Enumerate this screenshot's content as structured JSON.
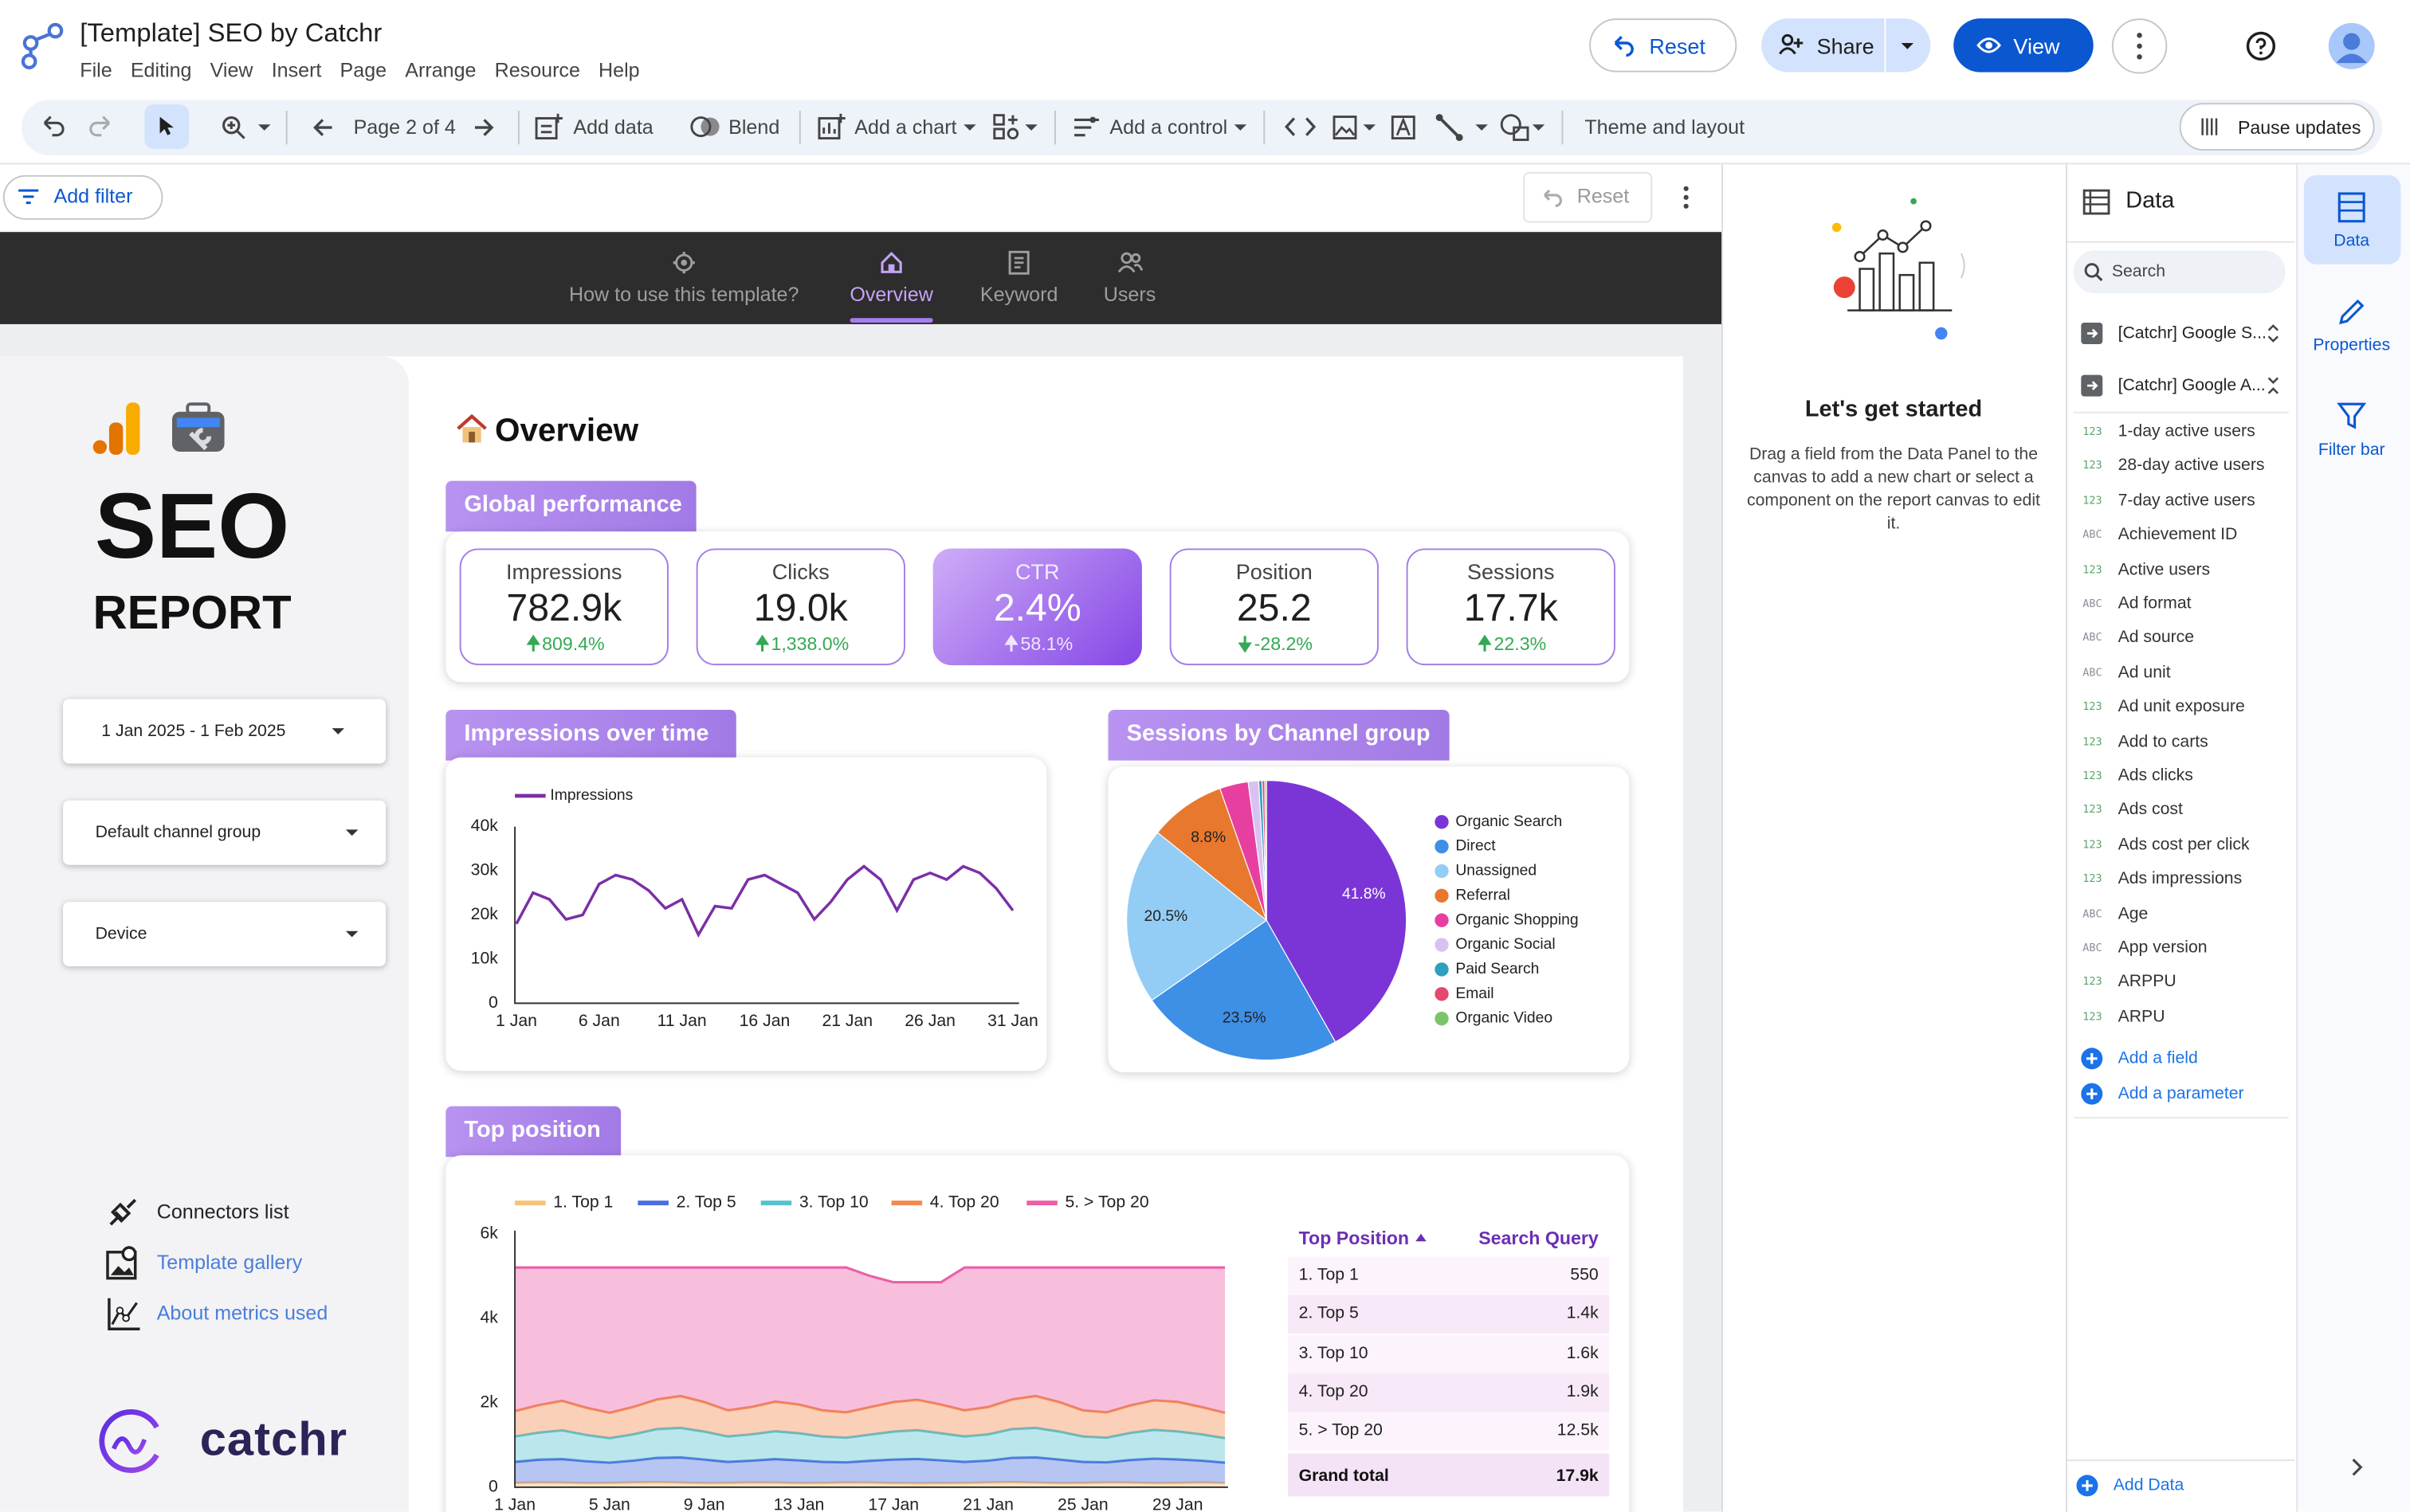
{
  "app": {
    "title": "[Template] SEO by Catchr",
    "menu": [
      "File",
      "Editing",
      "View",
      "Insert",
      "Page",
      "Arrange",
      "Resource",
      "Help"
    ],
    "buttons": {
      "reset": "Reset",
      "share": "Share",
      "view": "View"
    }
  },
  "toolbar": {
    "page": "Page 2 of 4",
    "add_data": "Add data",
    "blend": "Blend",
    "add_chart": "Add a chart",
    "add_control": "Add a control",
    "theme": "Theme and layout",
    "pause": "Pause updates"
  },
  "filter_bar": {
    "add_filter": "Add filter",
    "reset": "Reset"
  },
  "tabs": [
    "How to use this template?",
    "Overview",
    "Keyword",
    "Users"
  ],
  "active_tab": 1,
  "sidebar": {
    "title": "SEO",
    "subtitle": "REPORT",
    "controls": [
      "1 Jan 2025 - 1 Feb 2025",
      "Default channel group",
      "Device"
    ],
    "links": [
      "Connectors list",
      "Template gallery",
      "About metrics used"
    ],
    "brand": "catchr"
  },
  "overview": {
    "heading": "Overview",
    "global_performance": "Global performance",
    "scorecards": [
      {
        "label": "Impressions",
        "value": "782.9k",
        "change": "809.4%"
      },
      {
        "label": "Clicks",
        "value": "19.0k",
        "change": "1,338.0%"
      },
      {
        "label": "CTR",
        "value": "2.4%",
        "change": "58.1%"
      },
      {
        "label": "Position",
        "value": "25.2",
        "change": "-28.2%"
      },
      {
        "label": "Sessions",
        "value": "17.7k",
        "change": "22.3%"
      }
    ],
    "table": {
      "headers": [
        "Top Position",
        "Search Query"
      ],
      "rows": [
        [
          "1. Top 1",
          "550"
        ],
        [
          "2. Top 5",
          "1.4k"
        ],
        [
          "3. Top 10",
          "1.6k"
        ],
        [
          "4. Top 20",
          "1.9k"
        ],
        [
          "5. > Top 20",
          "12.5k"
        ]
      ],
      "total": [
        "Grand total",
        "17.9k"
      ]
    }
  },
  "chart_data": [
    {
      "type": "line",
      "title": "Impressions over time",
      "categories": [
        "1 Jan",
        null,
        null,
        null,
        null,
        "6 Jan",
        null,
        null,
        null,
        null,
        "11 Jan",
        null,
        null,
        null,
        null,
        "16 Jan",
        null,
        null,
        null,
        null,
        "21 Jan",
        null,
        null,
        null,
        null,
        "26 Jan",
        null,
        null,
        null,
        null,
        "31 Jan"
      ],
      "series": [
        {
          "name": "Impressions",
          "color": "#7b2fa6",
          "values": [
            18000,
            25000,
            23500,
            19000,
            20000,
            27000,
            29000,
            28000,
            25500,
            21500,
            23500,
            15500,
            22000,
            21500,
            28000,
            29000,
            27000,
            25000,
            19000,
            23000,
            28000,
            31000,
            28000,
            21000,
            28000,
            29500,
            28000,
            31000,
            29500,
            26000,
            21000
          ]
        }
      ],
      "ylim": [
        0,
        40000
      ],
      "yticks": [
        0,
        {
          "value": 10000,
          "label": "10k"
        },
        {
          "value": 20000,
          "label": "20k"
        },
        {
          "value": 30000,
          "label": "30k"
        },
        {
          "value": 40000,
          "label": "40k"
        }
      ],
      "grid": false
    },
    {
      "type": "pie",
      "title": "Sessions by Channel group",
      "categories": [
        "Organic Search",
        "Direct",
        "Unassigned",
        "Referral",
        "Organic Shopping",
        "Organic Social",
        "Paid Search",
        "Email",
        "Organic Video"
      ],
      "colors": [
        "#7b35d6",
        "#3e8fe6",
        "#93cdf5",
        "#e8782e",
        "#e73fa0",
        "#d9c2f2",
        "#2f9fbf",
        "#e24a6e",
        "#7cc46b"
      ],
      "values": [
        41.8,
        23.5,
        20.5,
        8.8,
        3.3,
        1.2,
        0.4,
        0.3,
        0.2
      ],
      "value_labels": [
        "41.8%",
        "23.5%",
        "20.5%",
        "8.8%",
        null,
        null,
        null,
        null,
        null
      ]
    },
    {
      "type": "area",
      "title": "Top position",
      "stacked": true,
      "categories": [
        "1 Jan",
        null,
        null,
        null,
        "5 Jan",
        null,
        null,
        null,
        "9 Jan",
        null,
        null,
        null,
        "13 Jan",
        null,
        null,
        null,
        "17 Jan",
        null,
        null,
        null,
        "21 Jan",
        null,
        null,
        null,
        "25 Jan",
        null,
        null,
        null,
        "29 Jan",
        null,
        null
      ],
      "series": [
        {
          "name": "1. Top 1",
          "color": "#f8c27a",
          "values": [
            100,
            110,
            105,
            95,
            100,
            110,
            115,
            105,
            95,
            100,
            110,
            105,
            95,
            100,
            110,
            105,
            95,
            90,
            95,
            100,
            110,
            115,
            105,
            95,
            100,
            110,
            105,
            95,
            100,
            110,
            100
          ]
        },
        {
          "name": "2. Top 5",
          "color": "#4a6ee0",
          "values": [
            500,
            540,
            560,
            520,
            480,
            520,
            580,
            600,
            560,
            500,
            520,
            560,
            540,
            500,
            480,
            520,
            560,
            580,
            540,
            500,
            520,
            580,
            600,
            560,
            500,
            480,
            540,
            580,
            560,
            520,
            480
          ]
        },
        {
          "name": "3. Top 10",
          "color": "#55c2cf",
          "values": [
            600,
            640,
            680,
            620,
            580,
            620,
            680,
            700,
            660,
            600,
            620,
            660,
            640,
            600,
            580,
            620,
            660,
            680,
            640,
            600,
            620,
            680,
            700,
            660,
            600,
            580,
            640,
            680,
            660,
            620,
            580
          ]
        },
        {
          "name": "4. Top 20",
          "color": "#f28a4f",
          "values": [
            600,
            650,
            700,
            650,
            600,
            650,
            700,
            750,
            700,
            620,
            650,
            700,
            680,
            620,
            600,
            650,
            700,
            720,
            680,
            620,
            650,
            700,
            750,
            700,
            620,
            600,
            650,
            700,
            700,
            650,
            600
          ]
        },
        {
          "name": "5. > Top 20",
          "color": "#ec5fa8",
          "values": [
            3400,
            3260,
            3155,
            3315,
            3440,
            3300,
            3125,
            3045,
            3185,
            3380,
            3300,
            3175,
            3245,
            3380,
            3430,
            3105,
            2835,
            2780,
            2895,
            3380,
            3300,
            3125,
            3045,
            3185,
            3380,
            3430,
            3265,
            3145,
            3180,
            3300,
            3440
          ]
        }
      ],
      "ylim": [
        0,
        6000
      ],
      "yticks": [
        0,
        {
          "value": 2000,
          "label": "2k"
        },
        {
          "value": 4000,
          "label": "4k"
        },
        {
          "value": 6000,
          "label": "6k"
        }
      ]
    }
  ],
  "get_started": {
    "title": "Let's get started",
    "text": "Drag a field from the Data Panel to the canvas to add a new chart or select a component on the report canvas to edit it."
  },
  "data_panel": {
    "title": "Data",
    "search": "Search",
    "sources": [
      "[Catchr] Google S...",
      "[Catchr] Google A..."
    ],
    "fields": [
      {
        "type": "123",
        "name": "1-day active users"
      },
      {
        "type": "123",
        "name": "28-day active users"
      },
      {
        "type": "123",
        "name": "7-day active users"
      },
      {
        "type": "ABC",
        "name": "Achievement ID"
      },
      {
        "type": "123",
        "name": "Active users"
      },
      {
        "type": "ABC",
        "name": "Ad format"
      },
      {
        "type": "ABC",
        "name": "Ad source"
      },
      {
        "type": "ABC",
        "name": "Ad unit"
      },
      {
        "type": "123",
        "name": "Ad unit exposure"
      },
      {
        "type": "123",
        "name": "Add to carts"
      },
      {
        "type": "123",
        "name": "Ads clicks"
      },
      {
        "type": "123",
        "name": "Ads cost"
      },
      {
        "type": "123",
        "name": "Ads cost per click"
      },
      {
        "type": "123",
        "name": "Ads impressions"
      },
      {
        "type": "ABC",
        "name": "Age"
      },
      {
        "type": "ABC",
        "name": "App version"
      },
      {
        "type": "123",
        "name": "ARPPU"
      },
      {
        "type": "123",
        "name": "ARPU"
      }
    ],
    "add_field": "Add a field",
    "add_parameter": "Add a parameter",
    "add_data": "Add Data"
  },
  "side_tabs": [
    "Data",
    "Properties",
    "Filter bar"
  ]
}
